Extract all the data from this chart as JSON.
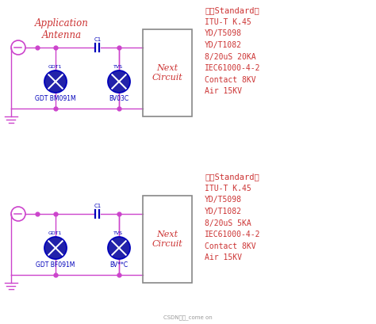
{
  "bg_color": "#ffffff",
  "wire_color": "#cc44cc",
  "component_color": "#0000bb",
  "text_red": "#cc3333",
  "standards1": {
    "title": "室外Standard：",
    "lines": [
      "ITU-T K.45",
      "YD/T5098",
      "YD/T1082",
      "8/20uS 20KA",
      "IEC61000-4-2",
      "Contact 8KV",
      "Air 15KV"
    ]
  },
  "standards2": {
    "title": "室内Standard：",
    "lines": [
      "ITU-T K.45",
      "YD/T5098",
      "YD/T1082",
      "8/20uS 5KA",
      "IEC61000-4-2",
      "Contact 8KV",
      "Air 15KV"
    ]
  },
  "circuit1": {
    "antenna_label": "Application\nAntenna",
    "gdt_name": "GDT1",
    "tvs_name": "TVS",
    "cap_label": "C1",
    "gdt_label": "GDT BM091M",
    "tvs_label": "BV03C",
    "box_label": "Next\nCircuit"
  },
  "circuit2": {
    "gdt_name": "GDT1",
    "tvs_name": "TVS",
    "cap_label": "C1",
    "gdt_label": "GDT BF091M",
    "tvs_label": "BV**C",
    "box_label": "Next\nCircuit"
  },
  "watermark": "CSDN博客_come on",
  "figsize": [
    4.74,
    4.09
  ],
  "dpi": 100
}
